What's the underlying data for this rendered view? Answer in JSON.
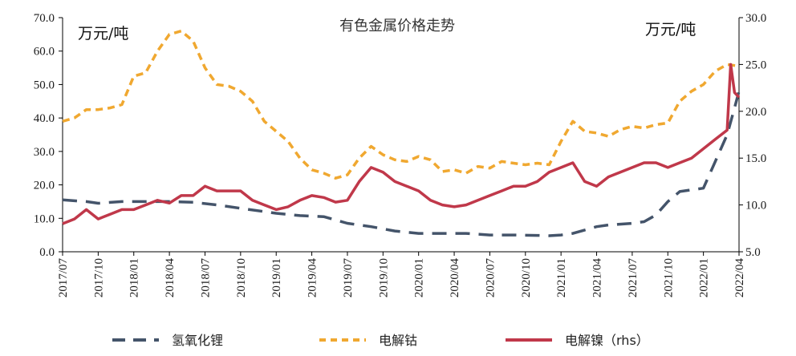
{
  "chart_data": {
    "type": "line",
    "title": "有色金属价格走势",
    "left_unit": "万元/吨",
    "right_unit": "万元/吨",
    "left_axis": {
      "min": 0,
      "max": 70,
      "step": 10,
      "ticks": [
        "0.0",
        "10.0",
        "20.0",
        "30.0",
        "40.0",
        "50.0",
        "60.0",
        "70.0"
      ]
    },
    "right_axis": {
      "min": 5,
      "max": 30,
      "step": 5,
      "ticks": [
        "5.0",
        "10.0",
        "15.0",
        "20.0",
        "25.0",
        "30.0"
      ]
    },
    "x_axis": {
      "start": "2017-07",
      "end": "2022-04",
      "ticks": [
        "2017/07",
        "2017/10",
        "2018/01",
        "2018/04",
        "2018/07",
        "2018/10",
        "2019/01",
        "2019/04",
        "2019/07",
        "2019/10",
        "2020/01",
        "2020/04",
        "2020/07",
        "2020/10",
        "2021/01",
        "2021/04",
        "2021/07",
        "2021/10",
        "2022/01",
        "2022/04"
      ]
    },
    "series": [
      {
        "name": "氢氧化锂",
        "axis": "left",
        "color": "#44546a",
        "style": "long-dash",
        "points": [
          [
            "2017-07",
            15.5
          ],
          [
            "2017-09",
            15.0
          ],
          [
            "2017-10",
            14.5
          ],
          [
            "2017-12",
            15.0
          ],
          [
            "2018-02",
            15.0
          ],
          [
            "2018-04",
            15.0
          ],
          [
            "2018-06",
            14.8
          ],
          [
            "2018-08",
            14.0
          ],
          [
            "2018-10",
            13.0
          ],
          [
            "2018-12",
            12.0
          ],
          [
            "2019-01",
            11.5
          ],
          [
            "2019-03",
            10.8
          ],
          [
            "2019-05",
            10.5
          ],
          [
            "2019-07",
            8.5
          ],
          [
            "2019-09",
            7.5
          ],
          [
            "2019-11",
            6.2
          ],
          [
            "2020-01",
            5.5
          ],
          [
            "2020-03",
            5.5
          ],
          [
            "2020-05",
            5.5
          ],
          [
            "2020-07",
            5.0
          ],
          [
            "2020-09",
            5.0
          ],
          [
            "2020-11",
            4.9
          ],
          [
            "2020-12",
            4.8
          ],
          [
            "2021-01",
            5.0
          ],
          [
            "2021-02",
            5.5
          ],
          [
            "2021-03",
            6.5
          ],
          [
            "2021-04",
            7.5
          ],
          [
            "2021-05",
            8.0
          ],
          [
            "2021-07",
            8.5
          ],
          [
            "2021-08",
            9.0
          ],
          [
            "2021-09",
            11.0
          ],
          [
            "2021-10",
            15.0
          ],
          [
            "2021-11",
            18.0
          ],
          [
            "2021-12",
            18.5
          ],
          [
            "2022-01",
            19.0
          ],
          [
            "2022-02",
            27.0
          ],
          [
            "2022-03",
            35.0
          ],
          [
            "2022-03-20",
            43.0
          ],
          [
            "2022-04",
            48.0
          ]
        ]
      },
      {
        "name": "电解钴",
        "axis": "left",
        "color": "#f0a830",
        "style": "short-dash",
        "points": [
          [
            "2017-07",
            39.0
          ],
          [
            "2017-08",
            40.0
          ],
          [
            "2017-09",
            42.5
          ],
          [
            "2017-10",
            42.5
          ],
          [
            "2017-11",
            43.0
          ],
          [
            "2017-12",
            44.0
          ],
          [
            "2018-01",
            52.5
          ],
          [
            "2018-02",
            53.5
          ],
          [
            "2018-03",
            60.0
          ],
          [
            "2018-04",
            65.0
          ],
          [
            "2018-05",
            66.0
          ],
          [
            "2018-06",
            63.0
          ],
          [
            "2018-07",
            55.0
          ],
          [
            "2018-08",
            50.0
          ],
          [
            "2018-09",
            49.5
          ],
          [
            "2018-10",
            48.0
          ],
          [
            "2018-11",
            45.0
          ],
          [
            "2018-12",
            39.0
          ],
          [
            "2019-01",
            36.0
          ],
          [
            "2019-02",
            33.0
          ],
          [
            "2019-03",
            28.0
          ],
          [
            "2019-04",
            24.5
          ],
          [
            "2019-05",
            23.5
          ],
          [
            "2019-06",
            22.0
          ],
          [
            "2019-07",
            23.0
          ],
          [
            "2019-08",
            28.0
          ],
          [
            "2019-09",
            31.5
          ],
          [
            "2019-10",
            29.0
          ],
          [
            "2019-11",
            27.5
          ],
          [
            "2019-12",
            27.0
          ],
          [
            "2020-01",
            28.5
          ],
          [
            "2020-02",
            27.5
          ],
          [
            "2020-03",
            24.0
          ],
          [
            "2020-04",
            24.5
          ],
          [
            "2020-05",
            23.5
          ],
          [
            "2020-06",
            25.5
          ],
          [
            "2020-07",
            25.0
          ],
          [
            "2020-08",
            27.0
          ],
          [
            "2020-09",
            26.5
          ],
          [
            "2020-10",
            26.0
          ],
          [
            "2020-11",
            26.5
          ],
          [
            "2020-12",
            26.0
          ],
          [
            "2021-01",
            33.0
          ],
          [
            "2021-02",
            39.0
          ],
          [
            "2021-03",
            36.0
          ],
          [
            "2021-04",
            35.5
          ],
          [
            "2021-05",
            34.5
          ],
          [
            "2021-06",
            36.5
          ],
          [
            "2021-07",
            37.5
          ],
          [
            "2021-08",
            37.0
          ],
          [
            "2021-09",
            38.0
          ],
          [
            "2021-10",
            38.5
          ],
          [
            "2021-11",
            45.0
          ],
          [
            "2021-12",
            48.0
          ],
          [
            "2022-01",
            50.0
          ],
          [
            "2022-02",
            54.0
          ],
          [
            "2022-03",
            56.0
          ],
          [
            "2022-04",
            55.5
          ]
        ]
      },
      {
        "name": "电解镍（rhs）",
        "axis": "right",
        "color": "#c0384a",
        "style": "solid",
        "points": [
          [
            "2017-07",
            8.0
          ],
          [
            "2017-08",
            8.5
          ],
          [
            "2017-09",
            9.5
          ],
          [
            "2017-10",
            8.5
          ],
          [
            "2017-11",
            9.0
          ],
          [
            "2017-12",
            9.5
          ],
          [
            "2018-01",
            9.5
          ],
          [
            "2018-02",
            10.0
          ],
          [
            "2018-03",
            10.5
          ],
          [
            "2018-04",
            10.2
          ],
          [
            "2018-05",
            11.0
          ],
          [
            "2018-06",
            11.0
          ],
          [
            "2018-07",
            12.0
          ],
          [
            "2018-08",
            11.5
          ],
          [
            "2018-09",
            11.5
          ],
          [
            "2018-10",
            11.5
          ],
          [
            "2018-11",
            10.5
          ],
          [
            "2018-12",
            10.0
          ],
          [
            "2019-01",
            9.5
          ],
          [
            "2019-02",
            9.8
          ],
          [
            "2019-03",
            10.5
          ],
          [
            "2019-04",
            11.0
          ],
          [
            "2019-05",
            10.8
          ],
          [
            "2019-06",
            10.3
          ],
          [
            "2019-07",
            10.5
          ],
          [
            "2019-08",
            12.5
          ],
          [
            "2019-09",
            14.0
          ],
          [
            "2019-10",
            13.5
          ],
          [
            "2019-11",
            12.5
          ],
          [
            "2019-12",
            12.0
          ],
          [
            "2020-01",
            11.5
          ],
          [
            "2020-02",
            10.5
          ],
          [
            "2020-03",
            10.0
          ],
          [
            "2020-04",
            9.8
          ],
          [
            "2020-05",
            10.0
          ],
          [
            "2020-06",
            10.5
          ],
          [
            "2020-07",
            11.0
          ],
          [
            "2020-08",
            11.5
          ],
          [
            "2020-09",
            12.0
          ],
          [
            "2020-10",
            12.0
          ],
          [
            "2020-11",
            12.5
          ],
          [
            "2020-12",
            13.5
          ],
          [
            "2021-01",
            14.0
          ],
          [
            "2021-02",
            14.5
          ],
          [
            "2021-03",
            12.5
          ],
          [
            "2021-04",
            12.0
          ],
          [
            "2021-05",
            13.0
          ],
          [
            "2021-06",
            13.5
          ],
          [
            "2021-07",
            14.0
          ],
          [
            "2021-08",
            14.5
          ],
          [
            "2021-09",
            14.5
          ],
          [
            "2021-10",
            14.0
          ],
          [
            "2021-11",
            14.5
          ],
          [
            "2021-12",
            15.0
          ],
          [
            "2022-01",
            16.0
          ],
          [
            "2022-02",
            17.0
          ],
          [
            "2022-03",
            18.0
          ],
          [
            "2022-03-10",
            25.0
          ],
          [
            "2022-03-20",
            22.0
          ],
          [
            "2022-04",
            21.5
          ]
        ]
      }
    ],
    "grid": false,
    "legend_position": "bottom"
  }
}
